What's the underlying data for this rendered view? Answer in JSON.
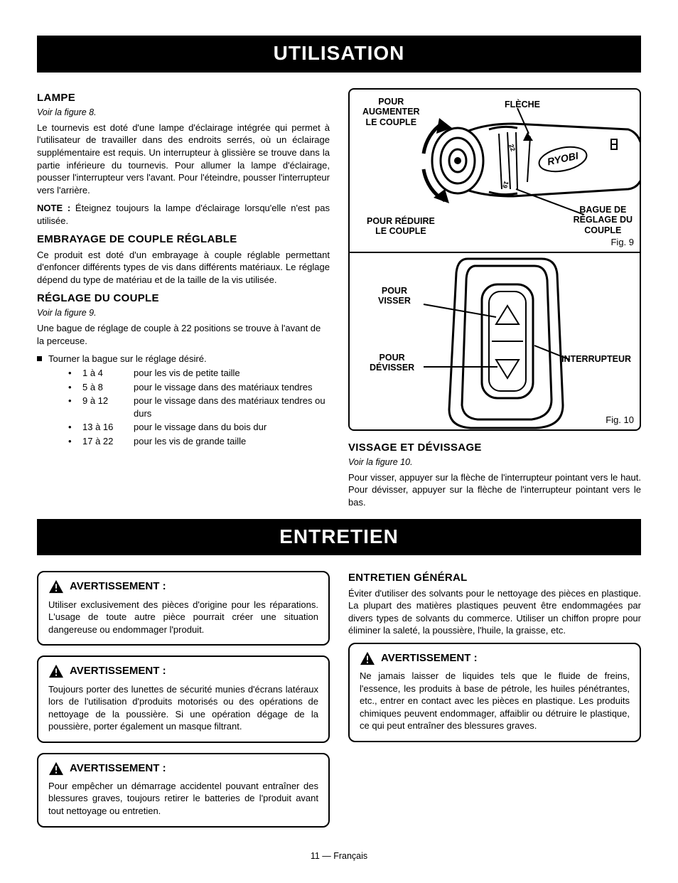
{
  "banner1": "UTILISATION",
  "banner2": "ENTRETIEN",
  "left": {
    "lampe": {
      "title": "LAMPE",
      "figref": "Voir la figure 8.",
      "p1": "Le tournevis est doté d'une lampe d'éclairage intégrée qui permet à l'utilisateur de travailler dans des endroits serrés, où un éclairage supplémentaire est requis. Un interrupteur à glissière se trouve dans la partie inférieure du tournevis. Pour allumer la lampe d'éclairage, pousser l'interrupteur vers l'avant. Pour l'éteindre, pousser l'interrupteur vers l'arrière.",
      "noteLabel": "NOTE :",
      "noteText": " Éteignez toujours la lampe d'éclairage lorsqu'elle n'est pas utilisée."
    },
    "embrayage": {
      "title": "EMBRAYAGE DE COUPLE RÉGLABLE",
      "p1": "Ce produit est doté d'un embrayage à couple réglable permettant d'enfoncer différents types de vis dans différents matériaux. Le réglage dépend du type de matériau et de la taille de la vis utilisée."
    },
    "reglage": {
      "title": "RÉGLAGE DU COUPLE",
      "figref": "Voir la figure 9.",
      "p1": "Une bague de réglage de couple à 22 positions se trouve à l'avant de la perceuse.",
      "bullet": "Tourner la bague sur le réglage désiré.",
      "rows": [
        {
          "rng": "1 à 4",
          "desc": "pour les vis de petite taille"
        },
        {
          "rng": "5 à 8",
          "desc": "pour le vissage dans des matériaux tendres"
        },
        {
          "rng": "9 à 12",
          "desc": "pour le vissage dans des matériaux tendres ou durs"
        },
        {
          "rng": "13 à 16",
          "desc": "pour le vissage dans du bois dur"
        },
        {
          "rng": "17 à 22",
          "desc": "pour les vis de grande taille"
        }
      ]
    }
  },
  "right": {
    "fig9": {
      "label": "Fig. 9",
      "callouts": {
        "increase": "POUR\nAUGMENTER\nLE COUPLE",
        "arrow": "FLÈCHE",
        "reduce": "POUR RÉDUIRE\nLE COUPLE",
        "ring": "BAGUE DE\nRÉGLAGE DU\nCOUPLE",
        "brand": "RYOBI"
      }
    },
    "fig10": {
      "label": "Fig. 10",
      "callouts": {
        "visser": "POUR\nVISSER",
        "devisser": "POUR\nDÉVISSER",
        "switch": "INTERRUPTEUR"
      }
    },
    "vissage": {
      "title": "VISSAGE ET DÉVISSAGE",
      "figref": "Voir la figure 10.",
      "p1": "Pour visser, appuyer sur la flèche de l'interrupteur pointant vers le haut. Pour dévisser, appuyer sur la flèche de l'interrupteur pointant vers le bas."
    }
  },
  "entretien": {
    "general": {
      "title": "ENTRETIEN GÉNÉRAL",
      "p1": "Éviter d'utiliser des solvants pour le nettoyage des pièces en plastique. La plupart des matières plastiques peuvent être endommagées par divers types de solvants du commerce. Utiliser un chiffon propre pour éliminer la saleté, la poussière, l'huile, la graisse, etc."
    },
    "warnLabel": "AVERTISSEMENT :",
    "w1": "Utiliser exclusivement des pièces d'origine pour les réparations. L'usage de toute autre pièce pourrait créer une situation dangereuse ou endommager l'produit.",
    "w2": "Toujours porter des lunettes de sécurité munies d'écrans latéraux lors de l'utilisation d'produits motorisés ou des opérations de nettoyage de la poussière. Si une opération dégage de la poussière, porter également un masque filtrant.",
    "w3": "Pour empêcher un démarrage accidentel pouvant entraîner des blessures graves, toujours retirer le batteries de l'produit avant tout nettoyage ou entretien.",
    "w4": "Ne jamais laisser de liquides tels que le fluide de freins, l'essence, les produits à base de pétrole, les huiles pénétrantes, etc., entrer en contact avec les pièces en plastique. Les produits chimiques peuvent endommager, affaiblir ou détruire le plastique, ce qui peut entraîner des blessures graves."
  },
  "footer": "11 — Français"
}
